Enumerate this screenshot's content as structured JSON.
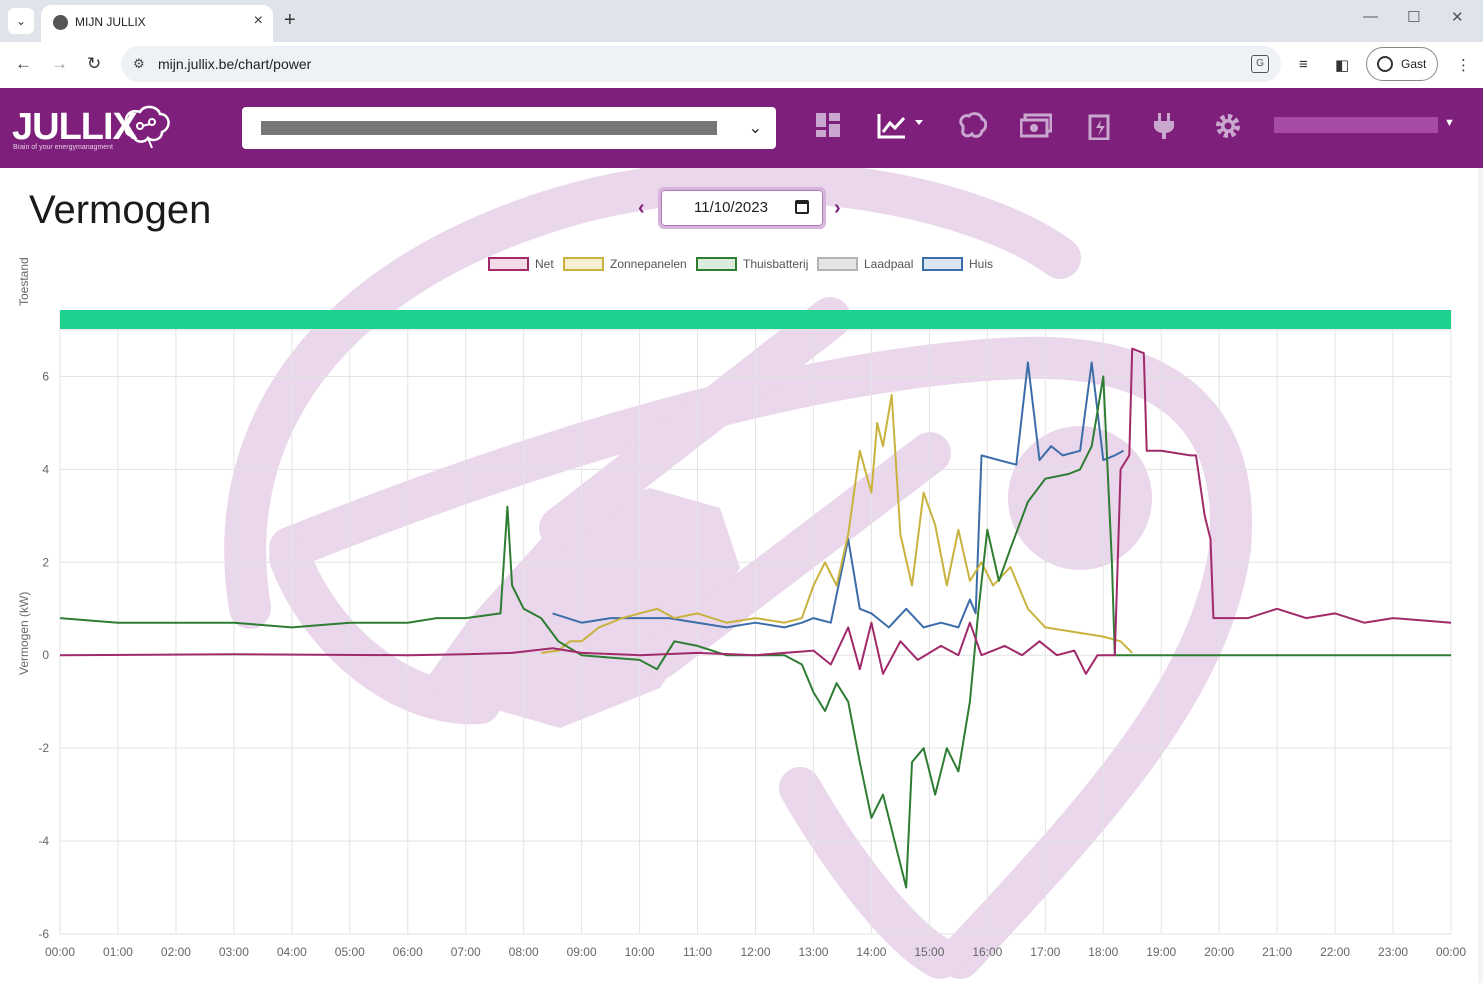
{
  "browser": {
    "tab_title": "MIJN JULLIX",
    "url": "mijn.jullix.be/chart/power",
    "profile_label": "Gast"
  },
  "app": {
    "brand": "JULLIX",
    "brand_tagline": "Brain of your energymanagment",
    "header_icons": [
      "dashboard-icon",
      "chart-icon",
      "brain-icon",
      "money-icon",
      "battery-icon",
      "plug-icon",
      "gear-icon"
    ]
  },
  "page": {
    "title": "Vermogen",
    "date_value": "11/10/2023"
  },
  "chart_data": {
    "type": "line",
    "xlabel": "",
    "ylabel": "Vermogen (kW)",
    "status_label": "Toestand",
    "status_color": "#1ed18e",
    "ylim": [
      -6,
      7
    ],
    "yticks": [
      6,
      4,
      2,
      0,
      -2,
      -4,
      -6
    ],
    "xticks": [
      "00:00",
      "01:00",
      "02:00",
      "03:00",
      "04:00",
      "05:00",
      "06:00",
      "07:00",
      "08:00",
      "09:00",
      "10:00",
      "11:00",
      "12:00",
      "13:00",
      "14:00",
      "15:00",
      "16:00",
      "17:00",
      "18:00",
      "19:00",
      "20:00",
      "21:00",
      "22:00",
      "23:00",
      "00:00"
    ],
    "series": [
      {
        "name": "Net",
        "color": "#a02a6a",
        "fill": "#f3dbe8",
        "points": [
          [
            0,
            0.0
          ],
          [
            3,
            0.02
          ],
          [
            6,
            0.0
          ],
          [
            7,
            0.02
          ],
          [
            7.8,
            0.05
          ],
          [
            8.5,
            0.15
          ],
          [
            9,
            0.05
          ],
          [
            10,
            0.0
          ],
          [
            11,
            0.05
          ],
          [
            12,
            0.0
          ],
          [
            13,
            0.1
          ],
          [
            13.3,
            -0.2
          ],
          [
            13.6,
            0.6
          ],
          [
            13.8,
            -0.3
          ],
          [
            14,
            0.7
          ],
          [
            14.2,
            -0.4
          ],
          [
            14.5,
            0.3
          ],
          [
            14.8,
            -0.1
          ],
          [
            15.2,
            0.2
          ],
          [
            15.5,
            0.0
          ],
          [
            15.7,
            0.7
          ],
          [
            15.9,
            0.0
          ],
          [
            16.3,
            0.2
          ],
          [
            16.6,
            0.0
          ],
          [
            16.9,
            0.3
          ],
          [
            17.2,
            0.0
          ],
          [
            17.5,
            0.1
          ],
          [
            17.7,
            -0.4
          ],
          [
            17.9,
            0.0
          ],
          [
            18.2,
            0.0
          ],
          [
            18.3,
            4.0
          ],
          [
            18.45,
            4.3
          ],
          [
            18.5,
            6.6
          ],
          [
            18.7,
            6.5
          ],
          [
            18.75,
            4.4
          ],
          [
            19.0,
            4.4
          ],
          [
            19.5,
            4.3
          ],
          [
            19.6,
            4.3
          ],
          [
            19.75,
            3.0
          ],
          [
            19.85,
            2.5
          ],
          [
            19.9,
            0.8
          ],
          [
            20.5,
            0.8
          ],
          [
            21,
            1.0
          ],
          [
            21.5,
            0.8
          ],
          [
            22,
            0.9
          ],
          [
            22.5,
            0.7
          ],
          [
            23,
            0.8
          ],
          [
            23.5,
            0.75
          ],
          [
            24,
            0.7
          ]
        ]
      },
      {
        "name": "Zonnepanelen",
        "color": "#c9b23e",
        "fill": "#f5efd2",
        "points": [
          [
            8.3,
            0.05
          ],
          [
            8.6,
            0.1
          ],
          [
            8.8,
            0.3
          ],
          [
            9,
            0.3
          ],
          [
            9.3,
            0.6
          ],
          [
            9.7,
            0.8
          ],
          [
            10,
            0.9
          ],
          [
            10.3,
            1.0
          ],
          [
            10.6,
            0.8
          ],
          [
            11,
            0.9
          ],
          [
            11.5,
            0.7
          ],
          [
            12,
            0.8
          ],
          [
            12.5,
            0.7
          ],
          [
            12.8,
            0.8
          ],
          [
            13.0,
            1.5
          ],
          [
            13.2,
            2.0
          ],
          [
            13.4,
            1.5
          ],
          [
            13.6,
            2.6
          ],
          [
            13.8,
            4.4
          ],
          [
            14.0,
            3.5
          ],
          [
            14.1,
            5.0
          ],
          [
            14.2,
            4.5
          ],
          [
            14.35,
            5.6
          ],
          [
            14.5,
            2.6
          ],
          [
            14.7,
            1.5
          ],
          [
            14.9,
            3.5
          ],
          [
            15.1,
            2.8
          ],
          [
            15.3,
            1.5
          ],
          [
            15.5,
            2.7
          ],
          [
            15.7,
            1.6
          ],
          [
            15.9,
            2.0
          ],
          [
            16.1,
            1.5
          ],
          [
            16.4,
            1.9
          ],
          [
            16.7,
            1.0
          ],
          [
            17.0,
            0.6
          ],
          [
            17.5,
            0.5
          ],
          [
            18.0,
            0.4
          ],
          [
            18.3,
            0.3
          ],
          [
            18.5,
            0.05
          ]
        ]
      },
      {
        "name": "Thuisbatterij",
        "color": "#2e7d32",
        "fill": "#dcecdc",
        "points": [
          [
            0,
            0.8
          ],
          [
            1,
            0.7
          ],
          [
            2,
            0.7
          ],
          [
            3,
            0.7
          ],
          [
            4,
            0.6
          ],
          [
            5,
            0.7
          ],
          [
            6,
            0.7
          ],
          [
            6.5,
            0.8
          ],
          [
            7,
            0.8
          ],
          [
            7.6,
            0.9
          ],
          [
            7.72,
            3.2
          ],
          [
            7.8,
            1.5
          ],
          [
            8,
            1.0
          ],
          [
            8.3,
            0.8
          ],
          [
            8.6,
            0.3
          ],
          [
            9,
            0.0
          ],
          [
            9.5,
            -0.05
          ],
          [
            10,
            -0.1
          ],
          [
            10.3,
            -0.3
          ],
          [
            10.6,
            0.3
          ],
          [
            11,
            0.2
          ],
          [
            11.5,
            0.0
          ],
          [
            12,
            0.0
          ],
          [
            12.5,
            0.0
          ],
          [
            12.8,
            -0.2
          ],
          [
            13.0,
            -0.8
          ],
          [
            13.2,
            -1.2
          ],
          [
            13.4,
            -0.6
          ],
          [
            13.6,
            -1.0
          ],
          [
            13.8,
            -2.3
          ],
          [
            14.0,
            -3.5
          ],
          [
            14.2,
            -3.0
          ],
          [
            14.4,
            -4.0
          ],
          [
            14.6,
            -5.0
          ],
          [
            14.7,
            -2.3
          ],
          [
            14.9,
            -2.0
          ],
          [
            15.1,
            -3.0
          ],
          [
            15.3,
            -2.0
          ],
          [
            15.5,
            -2.5
          ],
          [
            15.7,
            -1.0
          ],
          [
            15.85,
            1.0
          ],
          [
            16.0,
            2.7
          ],
          [
            16.2,
            1.6
          ],
          [
            16.4,
            2.3
          ],
          [
            16.7,
            3.3
          ],
          [
            17.0,
            3.8
          ],
          [
            17.4,
            3.9
          ],
          [
            17.6,
            4.0
          ],
          [
            17.8,
            4.5
          ],
          [
            18.0,
            6.0
          ],
          [
            18.15,
            2.0
          ],
          [
            18.2,
            0.0
          ],
          [
            19,
            0.0
          ],
          [
            20,
            0.0
          ],
          [
            21,
            0.0
          ],
          [
            22,
            0.0
          ],
          [
            23,
            0.0
          ],
          [
            24,
            0.0
          ]
        ]
      },
      {
        "name": "Laadpaal",
        "color": "#b3b3b3",
        "fill": "#e6e6e6",
        "points": []
      },
      {
        "name": "Huis",
        "color": "#3d6da8",
        "fill": "#dbe5f1",
        "points": [
          [
            8.5,
            0.9
          ],
          [
            9,
            0.7
          ],
          [
            9.5,
            0.8
          ],
          [
            10,
            0.8
          ],
          [
            10.5,
            0.8
          ],
          [
            11,
            0.7
          ],
          [
            11.5,
            0.6
          ],
          [
            12,
            0.7
          ],
          [
            12.5,
            0.6
          ],
          [
            12.8,
            0.7
          ],
          [
            13,
            0.8
          ],
          [
            13.3,
            0.7
          ],
          [
            13.6,
            2.5
          ],
          [
            13.8,
            1.0
          ],
          [
            14,
            0.9
          ],
          [
            14.3,
            0.6
          ],
          [
            14.6,
            1.0
          ],
          [
            14.9,
            0.6
          ],
          [
            15.2,
            0.7
          ],
          [
            15.5,
            0.6
          ],
          [
            15.7,
            1.2
          ],
          [
            15.8,
            0.9
          ],
          [
            15.9,
            4.3
          ],
          [
            16.2,
            4.2
          ],
          [
            16.5,
            4.1
          ],
          [
            16.7,
            6.3
          ],
          [
            16.9,
            4.2
          ],
          [
            17.1,
            4.5
          ],
          [
            17.3,
            4.3
          ],
          [
            17.6,
            4.4
          ],
          [
            17.8,
            6.3
          ],
          [
            18.0,
            4.2
          ],
          [
            18.2,
            4.3
          ],
          [
            18.35,
            4.4
          ]
        ]
      }
    ]
  }
}
